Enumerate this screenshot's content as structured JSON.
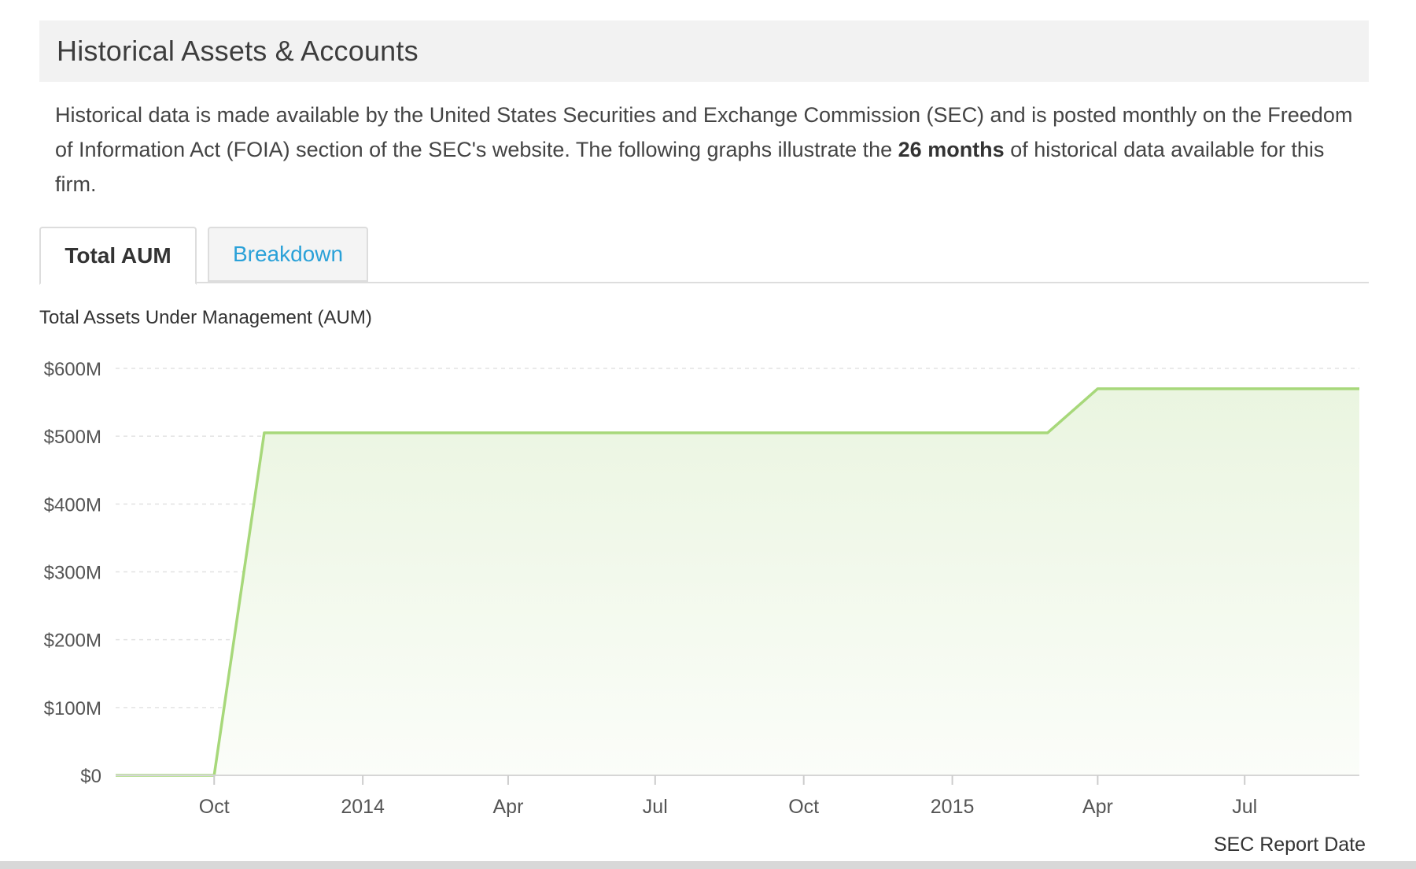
{
  "section": {
    "title": "Historical Assets & Accounts"
  },
  "intro": {
    "part1": "Historical data is made available by the United States Securities and Exchange Commission (SEC) and is posted monthly on the Freedom of Information Act (FOIA) section of the SEC's website. The following graphs illustrate the ",
    "bold": "26 months",
    "part2": " of historical data available for this firm."
  },
  "tabs": [
    {
      "label": "Total AUM",
      "active": true
    },
    {
      "label": "Breakdown",
      "active": false
    }
  ],
  "colors": {
    "series_line": "#a7d87a",
    "series_fill_top": "#eaf5e0",
    "series_fill_bottom": "#fbfdf9",
    "tab_link": "#2aa1d8",
    "grid": "#e3e3e3"
  },
  "chart_data": {
    "type": "area",
    "title": "Total Assets Under Management (AUM)",
    "xlabel": "SEC Report Date",
    "ylabel": "",
    "ylim": [
      0,
      600
    ],
    "y_unit": "$M",
    "y_ticks": [
      {
        "value": 0,
        "label": "$0"
      },
      {
        "value": 100,
        "label": "$100M"
      },
      {
        "value": 200,
        "label": "$200M"
      },
      {
        "value": 300,
        "label": "$300M"
      },
      {
        "value": 400,
        "label": "$400M"
      },
      {
        "value": 500,
        "label": "$500M"
      },
      {
        "value": 600,
        "label": "$600M"
      }
    ],
    "x_range": [
      "2013-08-01",
      "2015-09-10"
    ],
    "x_ticks": [
      {
        "date": "2013-10-01",
        "label": "Oct"
      },
      {
        "date": "2014-01-01",
        "label": "2014"
      },
      {
        "date": "2014-04-01",
        "label": "Apr"
      },
      {
        "date": "2014-07-01",
        "label": "Jul"
      },
      {
        "date": "2014-10-01",
        "label": "Oct"
      },
      {
        "date": "2015-01-01",
        "label": "2015"
      },
      {
        "date": "2015-04-01",
        "label": "Apr"
      },
      {
        "date": "2015-07-01",
        "label": "Jul"
      }
    ],
    "grid": true,
    "legend": "none",
    "series": [
      {
        "points": [
          {
            "x": "2013-08-01",
            "y": 0
          },
          {
            "x": "2013-10-01",
            "y": 0
          },
          {
            "x": "2013-11-01",
            "y": 505
          },
          {
            "x": "2015-03-01",
            "y": 505
          },
          {
            "x": "2015-04-01",
            "y": 570
          },
          {
            "x": "2015-09-10",
            "y": 570
          }
        ]
      }
    ]
  }
}
